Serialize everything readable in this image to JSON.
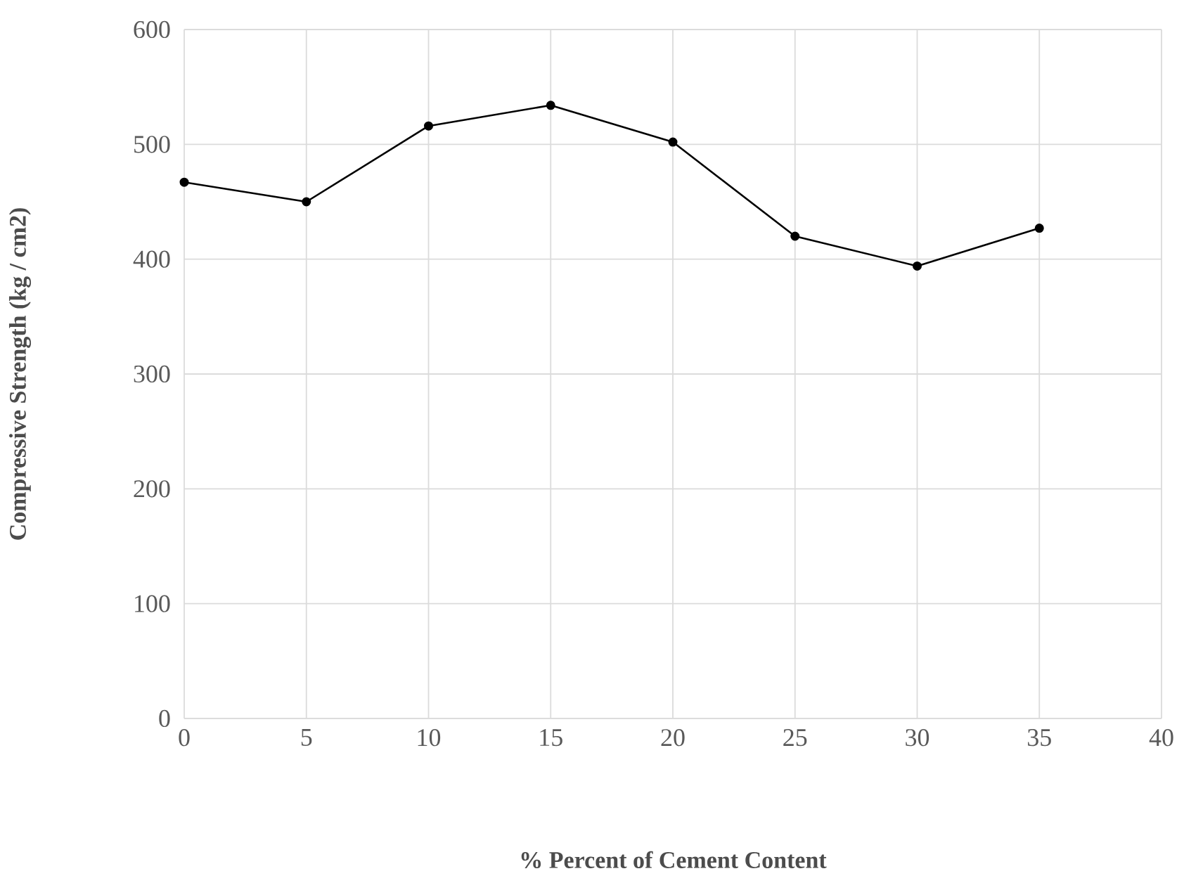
{
  "chart_data": {
    "type": "line",
    "xlabel": "% Percent of Cement Content",
    "ylabel": "Compressive Strength (kg / cm2)",
    "x": [
      0,
      5,
      10,
      15,
      20,
      25,
      30,
      35
    ],
    "series": [
      {
        "color": "#000000",
        "values": [
          467,
          450,
          516,
          534,
          502,
          420,
          394,
          427
        ]
      }
    ],
    "xlim": [
      0,
      40
    ],
    "ylim": [
      0,
      600
    ],
    "xticks": [
      0,
      5,
      10,
      15,
      20,
      25,
      30,
      35,
      40
    ],
    "yticks": [
      0,
      100,
      200,
      300,
      400,
      500,
      600
    ],
    "grid": true,
    "marker": "circle",
    "line_style": "solid"
  }
}
